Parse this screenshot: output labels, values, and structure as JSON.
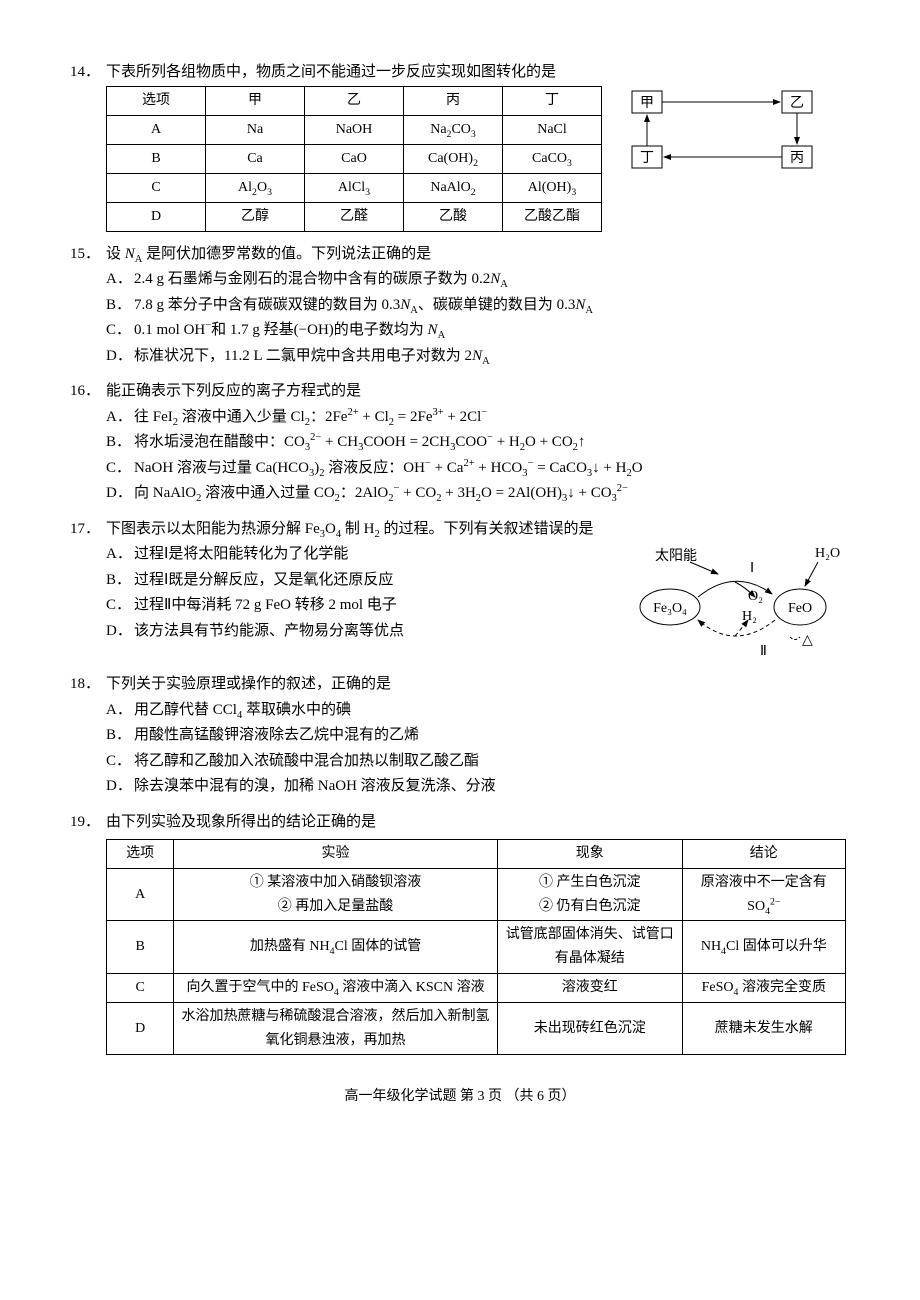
{
  "q14": {
    "num": "14．",
    "text": "下表所列各组物质中，物质之间不能通过一步反应实现如图转化的是",
    "headers": [
      "选项",
      "甲",
      "乙",
      "丙",
      "丁"
    ],
    "rows": [
      [
        "A",
        "Na",
        "NaOH",
        "Na<sub>2</sub>CO<sub>3</sub>",
        "NaCl"
      ],
      [
        "B",
        "Ca",
        "CaO",
        "Ca(OH)<sub>2</sub>",
        "CaCO<sub>3</sub>"
      ],
      [
        "C",
        "Al<sub>2</sub>O<sub>3</sub>",
        "AlCl<sub>3</sub>",
        "NaAlO<sub>2</sub>",
        "Al(OH)<sub>3</sub>"
      ],
      [
        "D",
        "乙醇",
        "乙醛",
        "乙酸",
        "乙酸乙酯"
      ]
    ],
    "diagram": {
      "labels": [
        "甲",
        "乙",
        "丙",
        "丁"
      ]
    }
  },
  "q15": {
    "num": "15．",
    "text": "设 <span class='ital'>N</span><sub>A</sub> 是阿伏加德罗常数的值。下列说法正确的是",
    "opts": [
      {
        "l": "A．",
        "t": "2.4 g 石墨烯与金刚石的混合物中含有的碳原子数为 0.2<span class='ital'>N</span><sub>A</sub>"
      },
      {
        "l": "B．",
        "t": "7.8 g 苯分子中含有碳碳双键的数目为 0.3<span class='ital'>N</span><sub>A</sub>、碳碳单键的数目为 0.3<span class='ital'>N</span><sub>A</sub>"
      },
      {
        "l": "C．",
        "t": "0.1 mol OH<sup>−</sup>和 1.7 g 羟基(−OH)的电子数均为 <span class='ital'>N</span><sub>A</sub>"
      },
      {
        "l": "D．",
        "t": "标准状况下，11.2 L 二氯甲烷中含共用电子对数为 2<span class='ital'>N</span><sub>A</sub>"
      }
    ]
  },
  "q16": {
    "num": "16．",
    "text": "能正确表示下列反应的离子方程式的是",
    "opts": [
      {
        "l": "A．",
        "t": "往 FeI<sub>2</sub> 溶液中通入少量 Cl<sub>2</sub>：2Fe<sup>2+</sup> + Cl<sub>2</sub> = 2Fe<sup>3+</sup> + 2Cl<sup>−</sup>"
      },
      {
        "l": "B．",
        "t": "将水垢浸泡在醋酸中：CO<sub>3</sub><sup>2−</sup> + CH<sub>3</sub>COOH = 2CH<sub>3</sub>COO<sup>−</sup> + H<sub>2</sub>O + CO<sub>2</sub>↑"
      },
      {
        "l": "C．",
        "t": "NaOH 溶液与过量 Ca(HCO<sub>3</sub>)<sub>2</sub> 溶液反应：OH<sup>−</sup> + Ca<sup>2+</sup> + HCO<sub>3</sub><sup>−</sup> = CaCO<sub>3</sub>↓ + H<sub>2</sub>O"
      },
      {
        "l": "D．",
        "t": "向 NaAlO<sub>2</sub> 溶液中通入过量 CO<sub>2</sub>：2AlO<sub>2</sub><sup>−</sup> + CO<sub>2</sub> + 3H<sub>2</sub>O = 2Al(OH)<sub>3</sub>↓ + CO<sub>3</sub><sup>2−</sup>"
      }
    ]
  },
  "q17": {
    "num": "17．",
    "text": "下图表示以太阳能为热源分解 Fe<sub>3</sub>O<sub>4</sub> 制 H<sub>2</sub> 的过程。下列有关叙述错误的是",
    "opts": [
      {
        "l": "A．",
        "t": "过程Ⅰ是将太阳能转化为了化学能"
      },
      {
        "l": "B．",
        "t": "过程Ⅰ既是分解反应，又是氧化还原反应"
      },
      {
        "l": "C．",
        "t": "过程Ⅱ中每消耗 72 g FeO 转移 2 mol 电子"
      },
      {
        "l": "D．",
        "t": "该方法具有节约能源、产物易分离等优点"
      }
    ],
    "diagram": {
      "sun": "太阳能",
      "left": "Fe₃O₄",
      "right": "FeO",
      "top": "H₂O",
      "o2": "O₂",
      "h2": "H₂",
      "I": "Ⅰ",
      "II": "Ⅱ",
      "heat": "△"
    }
  },
  "q18": {
    "num": "18．",
    "text": "下列关于实验原理或操作的叙述，正确的是",
    "opts": [
      {
        "l": "A．",
        "t": "用乙醇代替 CCl<sub>4</sub> 萃取碘水中的碘"
      },
      {
        "l": "B．",
        "t": "用酸性高锰酸钾溶液除去乙烷中混有的乙烯"
      },
      {
        "l": "C．",
        "t": "将乙醇和乙酸加入浓硫酸中混合加热以制取乙酸乙酯"
      },
      {
        "l": "D．",
        "t": "除去溴苯中混有的溴，加稀 NaOH 溶液反复洗涤、分液"
      }
    ]
  },
  "q19": {
    "num": "19．",
    "text": "由下列实验及现象所得出的结论正确的是",
    "headers": [
      "选项",
      "实验",
      "现象",
      "结论"
    ],
    "rows": [
      {
        "opt": "A",
        "exp": "① 某溶液中加入硝酸钡溶液<br>② 再加入足量盐酸",
        "phen": "① 产生白色沉淀<br>② 仍有白色沉淀",
        "res": "原溶液中不一定含有 SO<sub>4</sub><sup>2−</sup>"
      },
      {
        "opt": "B",
        "exp": "加热盛有 NH<sub>4</sub>Cl 固体的试管",
        "phen": "试管底部固体消失、试管口有晶体凝结",
        "res": "NH<sub>4</sub>Cl 固体可以升华"
      },
      {
        "opt": "C",
        "exp": "向久置于空气中的 FeSO<sub>4</sub> 溶液中滴入 KSCN 溶液",
        "phen": "溶液变红",
        "res": "FeSO<sub>4</sub> 溶液完全变质"
      },
      {
        "opt": "D",
        "exp": "水浴加热蔗糖与稀硫酸混合溶液，然后加入新制氢氧化铜悬浊液，再加热",
        "phen": "未出现砖红色沉淀",
        "res": "蔗糖未发生水解"
      }
    ]
  },
  "footer": "高一年级化学试题 第 3 页 （共 6 页）"
}
